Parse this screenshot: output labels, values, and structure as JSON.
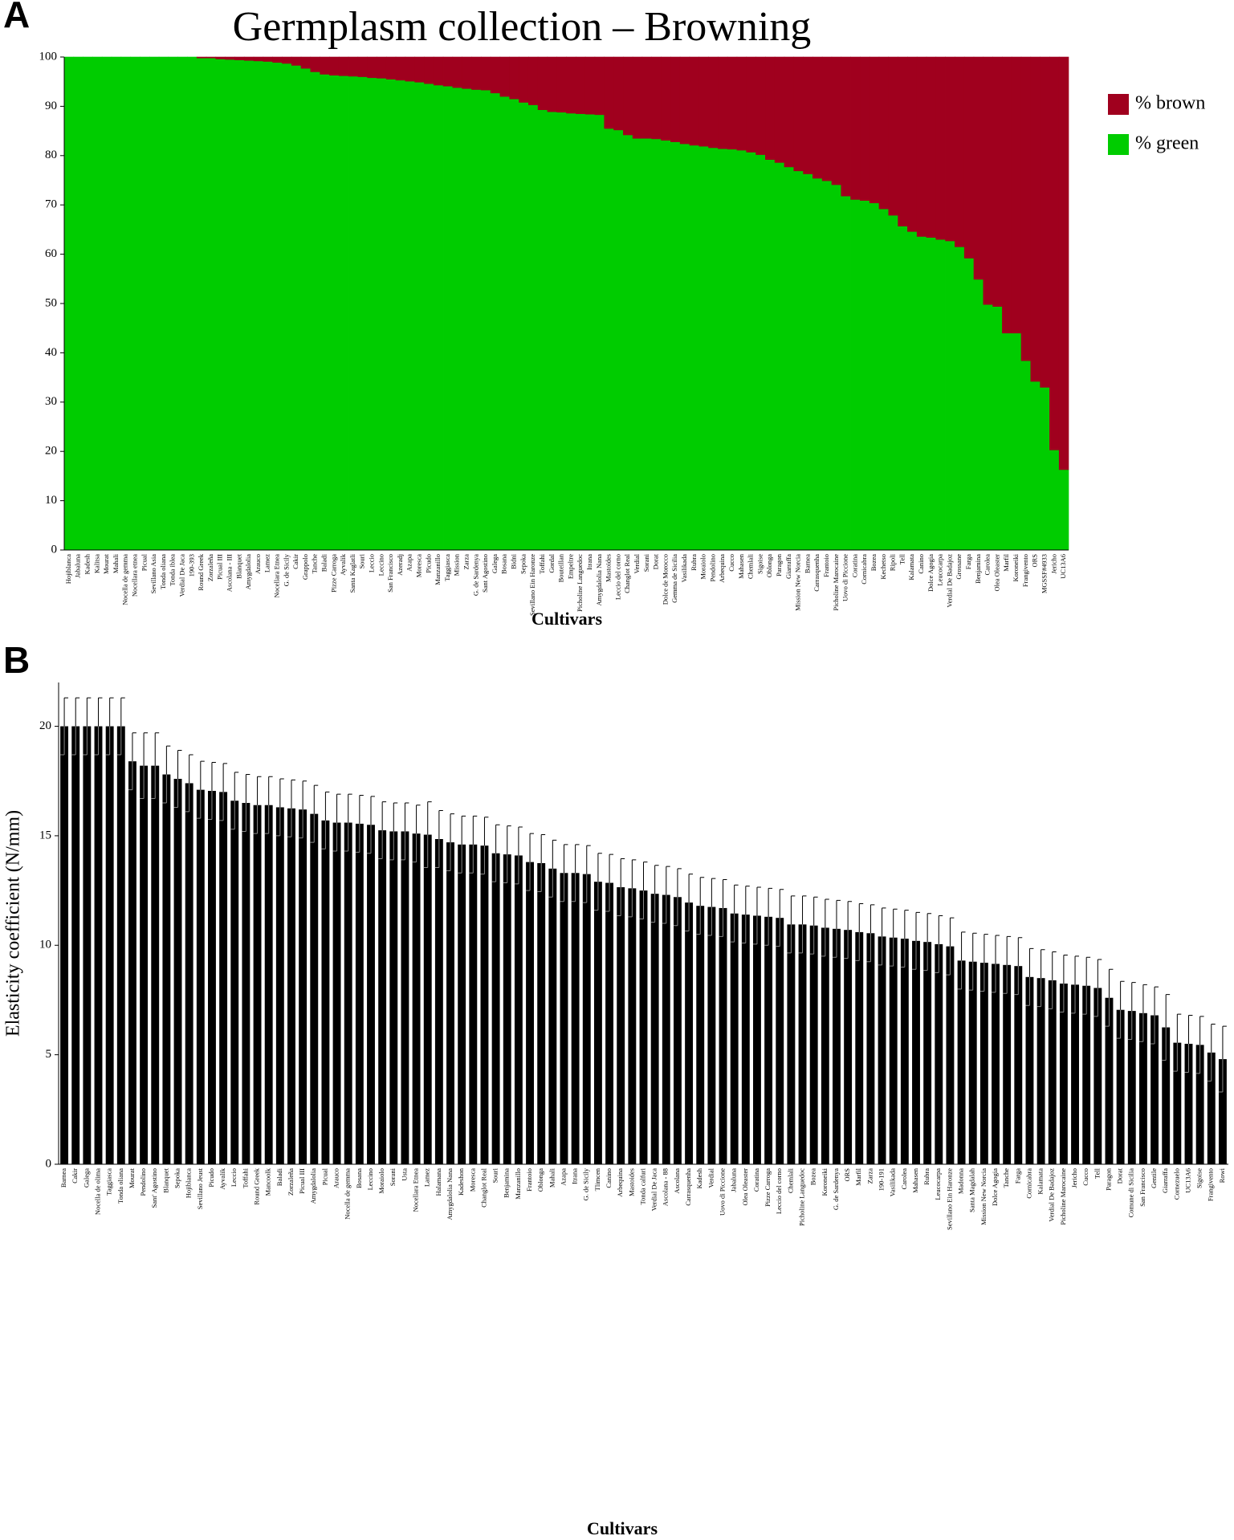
{
  "chart_data": [
    {
      "type": "stacked_bar",
      "panel_label": "A",
      "title": "Germplasm collection – Browning",
      "x_label": "Cultivars",
      "categories": [
        "Hojiblanca",
        "Jabaluna",
        "Kadesh",
        "Kalitsa",
        "Mourat",
        "Mahali",
        "Nocella de gemma",
        "Nocellara etnea",
        "Picual",
        "Sevillano Asia",
        "Tonda oliana",
        "Tonda iblea",
        "Verdial De Jaca",
        "190-393",
        "Round Greek",
        "Zorzaleña",
        "Picual III",
        "Ascolana - III",
        "Blanquet",
        "Amygdalolia",
        "Arauco",
        "Lamez",
        "Nocellara Etnea",
        "G. de Sicily",
        "Cakir",
        "Grappolo",
        "Tanche",
        "Baladi",
        "Pizze Carroga",
        "Ayvalik",
        "Santa Kaglatli",
        "Souri",
        "Leccio",
        "Leccino",
        "San Francisco",
        "Azeradj",
        "Azapa",
        "Moresca",
        "Picudo",
        "Manzanillo",
        "Taggiasca",
        "Mission",
        "Zarza",
        "G. de Sardenya",
        "Sant Agostino",
        "Galega",
        "Bosana",
        "Bidni",
        "Sepoka",
        "Sevillano Ein Haronze",
        "Toffahi",
        "Gordal",
        "Bouteillan",
        "Empeltre",
        "Picholine Languedoc",
        "Itrana",
        "Amygdalolia Nana",
        "Mastoides",
        "Leccio del corno",
        "Changlot Real",
        "Verdial",
        "Sorani",
        "Dorat",
        "Dolce de Morocco",
        "Gemma de Sicilia",
        "Vasilikada",
        "Rubra",
        "Moraiolo",
        "Pendolino",
        "Arbequina",
        "Cucco",
        "Mahasen",
        "Chemlali",
        "Sigoise",
        "Oblonga",
        "Paragon",
        "Giarraffa",
        "Mission New Norcia",
        "Barnea",
        "Carrasquenha",
        "Frantoio",
        "Picholine Marocaine",
        "Uovo di Piccione",
        "Coratina",
        "Cornicabra",
        "Bozea",
        "Kechetso",
        "Ripoli",
        "Tell",
        "Kalamata",
        "Canino",
        "Dolce Agogia",
        "Leucocarpa",
        "Verdial De Badajoz",
        "Grossane",
        "Farga",
        "Benjamina",
        "Carolea",
        "Olea Oleaster",
        "Marfil",
        "Koroneiki",
        "Frangivento",
        "ORS",
        "MGSSF#4933",
        "Jericho",
        "UC13A6"
      ],
      "series": [
        {
          "name": "% green",
          "color": "#00cc00",
          "values": [
            100,
            100,
            100,
            100,
            100,
            100,
            100,
            100,
            100,
            100,
            100,
            100,
            100,
            100,
            99.8,
            99.8,
            99.6,
            99.5,
            99.4,
            99.3,
            99.2,
            99.1,
            98.9,
            98.7,
            98.3,
            97.7,
            97,
            96.5,
            96.3,
            96.2,
            96.1,
            96,
            95.8,
            95.7,
            95.5,
            95.3,
            95.1,
            94.9,
            94.6,
            94.3,
            94.1,
            93.8,
            93.6,
            93.4,
            93.3,
            92.7,
            92,
            91.5,
            90.8,
            90.3,
            89.3,
            88.9,
            88.8,
            88.6,
            88.5,
            88.4,
            88.3,
            85.5,
            85.2,
            84.2,
            83.5,
            83.5,
            83.4,
            83.1,
            82.8,
            82.4,
            82.1,
            81.9,
            81.6,
            81.4,
            81.3,
            81.1,
            80.7,
            80.2,
            79.2,
            78.6,
            77.7,
            76.9,
            76.3,
            75.4,
            74.9,
            74.1,
            71.8,
            71.1,
            70.9,
            70.4,
            69.2,
            67.9,
            65.7,
            64.6,
            63.6,
            63.4,
            63,
            62.7,
            61.5,
            59.2,
            54.9,
            49.8,
            49.4,
            44,
            44,
            38.4,
            34.2,
            33,
            20.3,
            16.3
          ]
        },
        {
          "name": "% brown",
          "color": "#a0001e",
          "values": [
            0,
            0,
            0,
            0,
            0,
            0,
            0,
            0,
            0,
            0,
            0,
            0,
            0,
            0,
            0.2,
            0.2,
            0.4,
            0.5,
            0.6,
            0.7,
            0.8,
            0.9,
            1.1,
            1.3,
            1.7,
            2.3,
            3,
            3.5,
            3.7,
            3.8,
            3.9,
            4,
            4.2,
            4.3,
            4.5,
            4.7,
            4.9,
            5.1,
            5.4,
            5.7,
            5.9,
            6.2,
            6.4,
            6.6,
            6.7,
            7.3,
            8,
            8.5,
            9.2,
            9.7,
            10.7,
            11.1,
            11.2,
            11.4,
            11.5,
            11.6,
            11.7,
            14.5,
            14.8,
            15.8,
            16.5,
            16.5,
            16.6,
            16.9,
            17.2,
            17.6,
            17.9,
            18.1,
            18.4,
            18.6,
            18.7,
            18.9,
            19.3,
            19.8,
            20.8,
            21.4,
            22.3,
            23.1,
            23.7,
            24.6,
            25.1,
            25.9,
            28.2,
            28.9,
            29.1,
            29.6,
            30.8,
            32.1,
            34.3,
            35.4,
            36.4,
            36.6,
            37,
            37.3,
            38.5,
            40.8,
            45.1,
            50.2,
            50.6,
            56,
            56,
            61.6,
            65.8,
            67,
            79.7,
            83.7
          ]
        }
      ],
      "legend_order": [
        1,
        0
      ],
      "legend": "right",
      "ylim": [
        0,
        100
      ],
      "yticks": [
        0,
        10,
        20,
        30,
        40,
        50,
        60,
        70,
        80,
        90,
        100
      ]
    },
    {
      "type": "bar",
      "panel_label": "B",
      "x_label": "Cultivars",
      "y_label": "Elasticity coefficient (N/mm)",
      "color": "#000000",
      "categories": [
        "Barnea",
        "Cakir",
        "Galega",
        "Nocella de olima",
        "Taggiasca",
        "Tonda oliana",
        "Mourat",
        "Pendolino",
        "Sant' Agostino",
        "Blanquet",
        "Sepoka",
        "Hojiblanca",
        "Sevillano Jeust",
        "Picudo",
        "Ayvalik",
        "Leccio",
        "Toffahi",
        "Round Greek",
        "Mancoolk",
        "Baladi",
        "Zorzaleña",
        "Picual III",
        "Amygdalolia",
        "Picual",
        "Arauco",
        "Nocella de gemma",
        "Bosana",
        "Leccino",
        "Moraiolo",
        "Sorani",
        "Usta",
        "Nocellara Etnea",
        "Lamez",
        "Halamana",
        "Amygdalolia Nana",
        "Kadeshon",
        "Moresca",
        "Changlot Real",
        "Souri",
        "Benjamina",
        "Manzanillo",
        "Frantoio",
        "Oblonga",
        "Mahali",
        "Azapa",
        "Itrana",
        "G. de Sicily",
        "Tlimcen",
        "Canino",
        "Arbequina",
        "Mastoides",
        "Tonda calfuri",
        "Verdial De Jaca",
        "Ascolana - 88",
        "Ascolana",
        "Carrasquenha",
        "Kadesh",
        "Verdial",
        "Uovo di Piccione",
        "Jabaluna",
        "Olea Oleaster",
        "Coratina",
        "Pizze Carroga",
        "Leccio del corno",
        "Chemlali",
        "Picholine Languedoc",
        "Bozea",
        "Koroneiki",
        "G. de Sardenya",
        "ORS",
        "Marfil",
        "Zarza",
        "190-191",
        "Vasilikada",
        "Carolea",
        "Mahasen",
        "Rubra",
        "Leucocarpa",
        "Sevillano Ein Haronze",
        "Madonna",
        "Santa Magdalah",
        "Mission New Norcia",
        "Dolce Agogia",
        "Tanche",
        "Farga",
        "Cornicabra",
        "Kalamata",
        "Verdial De Badajoz",
        "Picholine Marocaine",
        "Jericho",
        "Cucco",
        "Tell",
        "Paragon",
        "Dorat",
        "Comune di Sicilia",
        "San Francisco",
        "Gentile",
        "Giarraffa",
        "Cornezuelo",
        "UC13A6",
        "Sigoise",
        "Frangivento",
        "Rowi"
      ],
      "values": [
        20,
        20,
        20,
        20,
        20,
        20,
        18.4,
        18.2,
        18.2,
        17.8,
        17.6,
        17.4,
        17.1,
        17.05,
        17,
        16.6,
        16.5,
        16.4,
        16.4,
        16.3,
        16.25,
        16.2,
        16,
        15.7,
        15.6,
        15.6,
        15.55,
        15.5,
        15.25,
        15.2,
        15.2,
        15.1,
        15.05,
        14.85,
        14.7,
        14.6,
        14.6,
        14.55,
        14.2,
        14.15,
        14.1,
        13.8,
        13.75,
        13.5,
        13.3,
        13.3,
        13.25,
        12.9,
        12.85,
        12.65,
        12.6,
        12.5,
        12.35,
        12.3,
        12.2,
        11.95,
        11.8,
        11.75,
        11.7,
        11.45,
        11.4,
        11.35,
        11.3,
        11.25,
        10.95,
        10.95,
        10.9,
        10.8,
        10.75,
        10.7,
        10.6,
        10.55,
        10.4,
        10.35,
        10.3,
        10.2,
        10.15,
        10.05,
        9.95,
        9.3,
        9.25,
        9.2,
        9.15,
        9.1,
        9.05,
        8.55,
        8.5,
        8.4,
        8.25,
        8.2,
        8.15,
        8.05,
        7.6,
        7.05,
        7,
        6.9,
        6.8,
        6.25,
        5.55,
        5.5,
        5.45,
        5.1,
        4.8
      ],
      "errors": [
        1.3,
        1.3,
        1.3,
        1.3,
        1.3,
        1.3,
        1.3,
        1.5,
        1.5,
        1.3,
        1.3,
        1.3,
        1.3,
        1.3,
        1.3,
        1.3,
        1.3,
        1.3,
        1.3,
        1.3,
        1.3,
        1.3,
        1.3,
        1.3,
        1.3,
        1.3,
        1.3,
        1.3,
        1.3,
        1.3,
        1.3,
        1.3,
        1.5,
        1.3,
        1.3,
        1.3,
        1.3,
        1.3,
        1.3,
        1.3,
        1.3,
        1.3,
        1.3,
        1.3,
        1.3,
        1.3,
        1.3,
        1.3,
        1.3,
        1.3,
        1.3,
        1.3,
        1.3,
        1.3,
        1.3,
        1.3,
        1.3,
        1.3,
        1.3,
        1.3,
        1.3,
        1.3,
        1.3,
        1.3,
        1.3,
        1.3,
        1.3,
        1.3,
        1.3,
        1.3,
        1.3,
        1.3,
        1.3,
        1.3,
        1.3,
        1.3,
        1.3,
        1.3,
        1.3,
        1.3,
        1.3,
        1.3,
        1.3,
        1.3,
        1.3,
        1.3,
        1.3,
        1.3,
        1.3,
        1.3,
        1.3,
        1.3,
        1.3,
        1.3,
        1.3,
        1.3,
        1.3,
        1.5,
        1.3,
        1.3,
        1.3,
        1.3,
        1.5
      ],
      "ylim": [
        0,
        22
      ],
      "yticks": [
        0,
        5,
        10,
        15,
        20
      ]
    }
  ]
}
